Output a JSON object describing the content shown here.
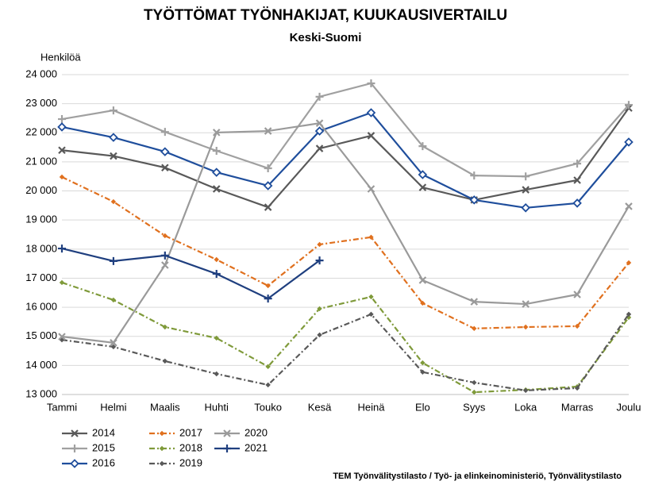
{
  "chart_data": {
    "type": "line",
    "title": "TYÖTTÖMAT TYÖNHAKIJAT, KUUKAUSIVERTAILU",
    "subtitle": "Keski-Suomi",
    "y_label": "Henkilöä",
    "source": "TEM Työnvälitystilasto / Työ- ja elinkeinoministeriö, Työnvälitystilasto",
    "categories": [
      "Tammi",
      "Helmi",
      "Maalis",
      "Huhti",
      "Touko",
      "Kesä",
      "Heinä",
      "Elo",
      "Syys",
      "Loka",
      "Marras",
      "Joulu"
    ],
    "ylim": [
      13000,
      24000
    ],
    "yticks": [
      {
        "value": 13000,
        "label": "13 000"
      },
      {
        "value": 14000,
        "label": "14 000"
      },
      {
        "value": 15000,
        "label": "15 000"
      },
      {
        "value": 16000,
        "label": "16 000"
      },
      {
        "value": 17000,
        "label": "17 000"
      },
      {
        "value": 18000,
        "label": "18 000"
      },
      {
        "value": 19000,
        "label": "19 000"
      },
      {
        "value": 20000,
        "label": "20 000"
      },
      {
        "value": 21000,
        "label": "21 000"
      },
      {
        "value": 22000,
        "label": "22 000"
      },
      {
        "value": 23000,
        "label": "23 000"
      },
      {
        "value": 24000,
        "label": "24 000"
      }
    ],
    "grid": true,
    "legend": "bottom-left",
    "series": [
      {
        "name": "2014",
        "color": "#595959",
        "marker": "x",
        "dash": "solid",
        "values": [
          21400,
          21200,
          20800,
          20070,
          19440,
          21460,
          21900,
          20120,
          19690,
          20040,
          20370,
          22850
        ]
      },
      {
        "name": "2015",
        "color": "#a0a0a0",
        "marker": "plus",
        "dash": "solid",
        "values": [
          22470,
          22770,
          22030,
          21380,
          20780,
          23240,
          23700,
          21540,
          20530,
          20500,
          20940,
          22960
        ]
      },
      {
        "name": "2016",
        "color": "#1f4e9c",
        "marker": "diamond",
        "dash": "solid",
        "values": [
          22200,
          21840,
          21350,
          20640,
          20180,
          22060,
          22690,
          20560,
          19690,
          19420,
          19580,
          21680
        ]
      },
      {
        "name": "2017",
        "color": "#e0701e",
        "marker": "small",
        "dash": "dashdot",
        "values": [
          20480,
          19630,
          18460,
          17640,
          16740,
          18160,
          18410,
          16140,
          15270,
          15320,
          15350,
          17530
        ]
      },
      {
        "name": "2018",
        "color": "#7f9a3a",
        "marker": "small",
        "dash": "dashdot",
        "values": [
          16850,
          16250,
          15320,
          14940,
          13960,
          15950,
          16360,
          14090,
          13080,
          13160,
          13270,
          15650
        ]
      },
      {
        "name": "2019",
        "color": "#595959",
        "marker": "small",
        "dash": "dashdot",
        "values": [
          14880,
          14640,
          14150,
          13710,
          13330,
          15050,
          15760,
          13770,
          13410,
          13140,
          13220,
          15760
        ]
      },
      {
        "name": "2020",
        "color": "#9a9a9a",
        "marker": "x",
        "dash": "solid",
        "values": [
          14990,
          14780,
          17450,
          22010,
          22060,
          22330,
          20070,
          16930,
          16190,
          16110,
          16440,
          19470
        ]
      },
      {
        "name": "2021",
        "color": "#1f3f7f",
        "marker": "plus",
        "dash": "solid",
        "values": [
          18020,
          17590,
          17780,
          17150,
          16300,
          17610,
          null,
          null,
          null,
          null,
          null,
          null
        ]
      }
    ]
  }
}
